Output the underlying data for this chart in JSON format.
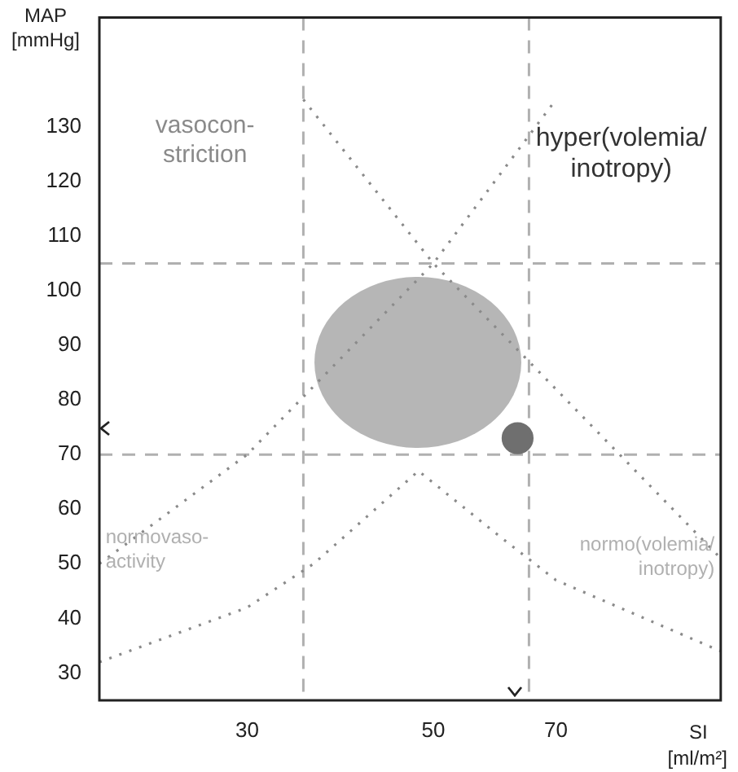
{
  "chart_data": {
    "type": "scatter",
    "xlabel": "SI [ml/m²]",
    "ylabel": "MAP [mmHg]",
    "log": "x",
    "xlim": [
      20,
      110
    ],
    "xticks": [
      30,
      50,
      70
    ],
    "ylim": [
      25,
      150
    ],
    "yticks": [
      30,
      40,
      50,
      60,
      70,
      80,
      90,
      100,
      110,
      120,
      130
    ],
    "grid": false,
    "legend": false,
    "series": [
      {
        "type": "scatter",
        "color": "#6f6f6f",
        "marker": "circle",
        "x": [
          63
        ],
        "values": [
          73
        ]
      },
      {
        "type": "line",
        "color": "#8a8a8a",
        "marker": "none",
        "line_style": "dotted",
        "x": [
          20,
          30,
          50,
          70
        ],
        "values": [
          50,
          70,
          105,
          135
        ]
      },
      {
        "type": "line",
        "color": "#8a8a8a",
        "marker": "none",
        "line_style": "dotted",
        "x": [
          35,
          50,
          110
        ],
        "values": [
          135,
          105,
          51
        ]
      },
      {
        "type": "line",
        "color": "#8a8a8a",
        "marker": "none",
        "line_style": "dotted",
        "x": [
          20,
          30,
          36,
          48,
          60,
          70,
          110
        ],
        "values": [
          32,
          42,
          50,
          67,
          55,
          47,
          34
        ]
      }
    ],
    "ref_lines": [
      {
        "axis": "y",
        "value": 105,
        "color": "#b0b0b0",
        "line_style": "dashed"
      },
      {
        "axis": "y",
        "value": 70,
        "color": "#b0b0b0",
        "line_style": "dashed"
      },
      {
        "axis": "x",
        "value": 35,
        "color": "#b0b0b0",
        "line_style": "dashed"
      },
      {
        "axis": "x",
        "value": 65,
        "color": "#b0b0b0",
        "line_style": "dashed"
      }
    ],
    "annotations": [
      "vasocon-\nstriction",
      "hyper(volemia/\ninotropy)",
      "normovaso-\nactivity",
      "normo(volemia/\ninotropy)"
    ]
  }
}
